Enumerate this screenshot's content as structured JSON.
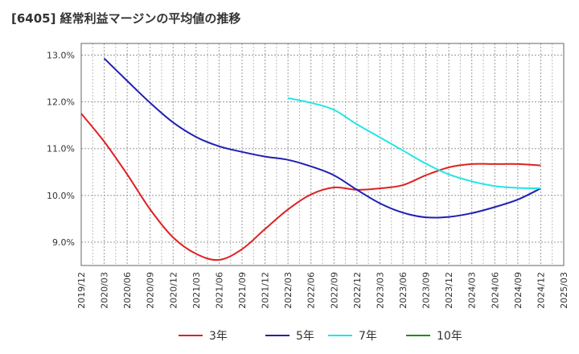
{
  "chart_data": {
    "type": "line",
    "title": "[6405]  経常利益マージンの平均値の推移",
    "x_ticks": [
      "2019/12",
      "2020/03",
      "2020/06",
      "2020/09",
      "2020/12",
      "2021/03",
      "2021/06",
      "2021/09",
      "2021/12",
      "2022/03",
      "2022/06",
      "2022/09",
      "2022/12",
      "2023/03",
      "2023/06",
      "2023/09",
      "2023/12",
      "2024/03",
      "2024/06",
      "2024/09",
      "2024/12",
      "2025/03"
    ],
    "y_ticks": [
      "9.0%",
      "10.0%",
      "11.0%",
      "12.0%",
      "13.0%"
    ],
    "y_tick_values": [
      9.0,
      10.0,
      11.0,
      12.0,
      13.0
    ],
    "ylim": [
      8.5,
      13.25
    ],
    "grid": true,
    "legend_position": "bottom",
    "series": [
      {
        "name": "3年",
        "color": "#dd2222",
        "values": [
          11.75,
          11.15,
          10.45,
          9.7,
          9.1,
          8.75,
          8.62,
          8.85,
          9.28,
          9.7,
          10.02,
          10.17,
          10.12,
          10.15,
          10.22,
          10.43,
          10.6,
          10.67,
          10.67,
          10.67,
          10.64,
          null
        ]
      },
      {
        "name": "5年",
        "color": "#1f1fb4",
        "values": [
          null,
          12.93,
          12.45,
          11.98,
          11.56,
          11.25,
          11.05,
          10.93,
          10.83,
          10.76,
          10.62,
          10.43,
          10.12,
          9.83,
          9.63,
          9.53,
          9.54,
          9.62,
          9.75,
          9.91,
          10.15,
          null
        ]
      },
      {
        "name": "7年",
        "color": "#22e5e5",
        "values": [
          null,
          null,
          null,
          null,
          null,
          null,
          null,
          null,
          null,
          12.08,
          11.98,
          11.83,
          11.52,
          11.24,
          10.96,
          10.68,
          10.45,
          10.3,
          10.2,
          10.16,
          10.15,
          null
        ]
      },
      {
        "name": "10年",
        "color": "#228b22",
        "values": [
          null,
          null,
          null,
          null,
          null,
          null,
          null,
          null,
          null,
          null,
          null,
          null,
          null,
          null,
          null,
          null,
          null,
          null,
          null,
          null,
          null,
          null
        ]
      }
    ]
  }
}
